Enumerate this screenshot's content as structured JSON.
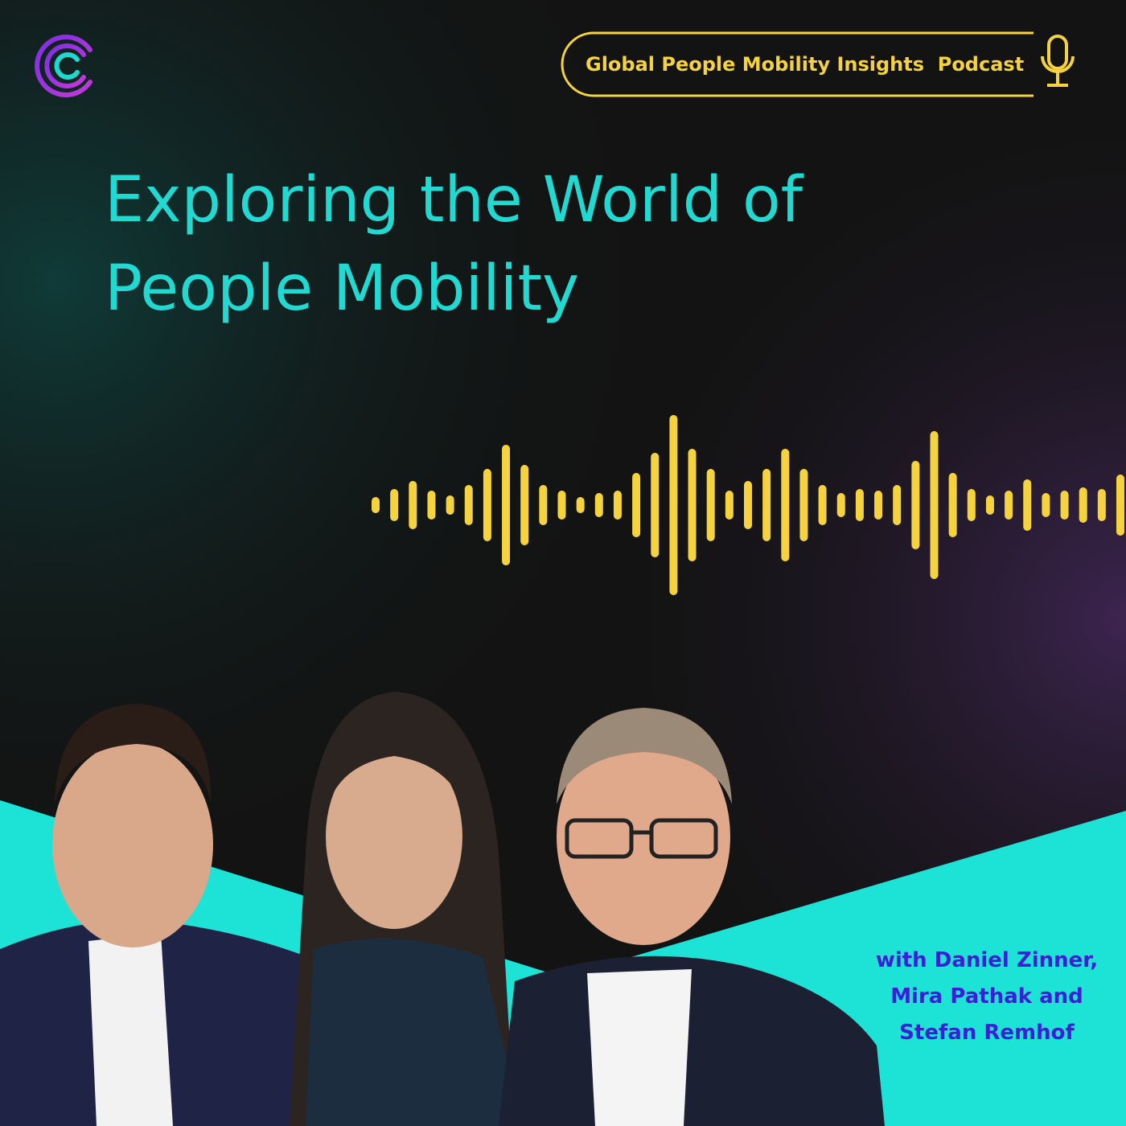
{
  "badge": {
    "text": "Global People Mobility Insights  Podcast"
  },
  "title": {
    "lines": [
      "Exploring the World of",
      "People Mobility"
    ]
  },
  "guests": {
    "lines": [
      "with Daniel Zinner,",
      "Mira Pathak and",
      "Stefan Remhof"
    ]
  }
}
